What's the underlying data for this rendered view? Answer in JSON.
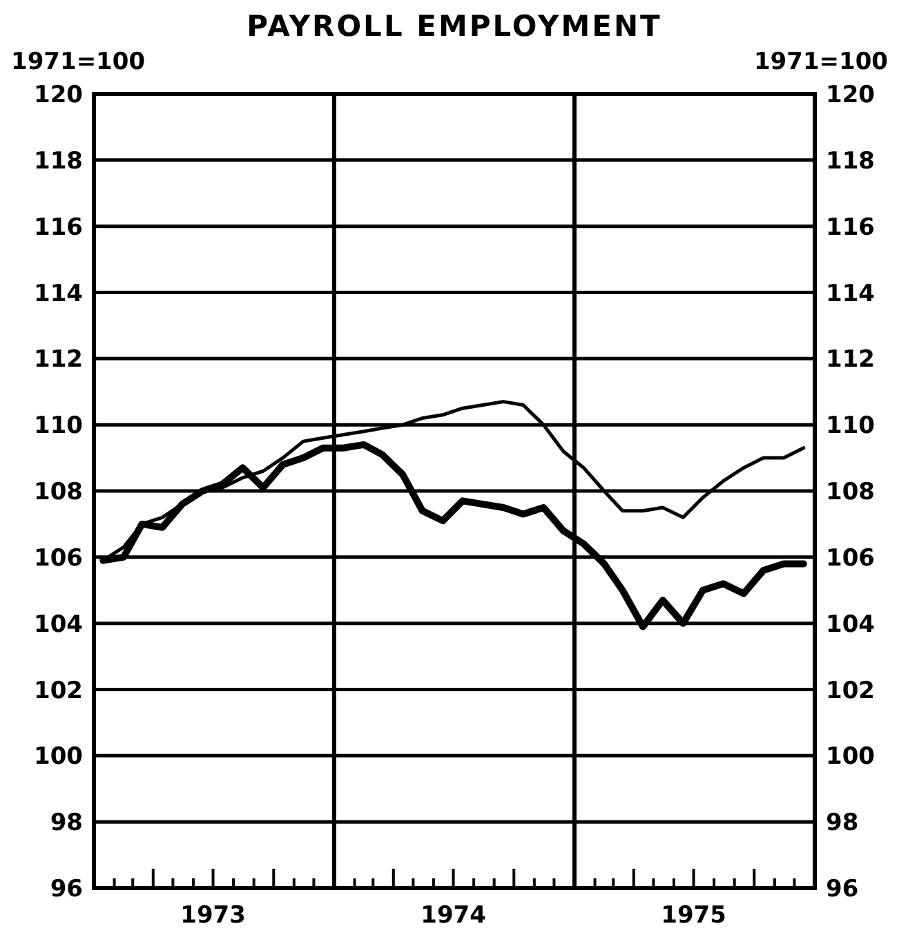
{
  "chart_data": {
    "type": "line",
    "title": "PAYROLL EMPLOYMENT",
    "ylabel": "1971=100",
    "y2label": "1971=100",
    "x": [
      "1973-01-15",
      "1973-02-15",
      "1973-03-15",
      "1973-04-15",
      "1973-05-15",
      "1973-06-15",
      "1973-07-15",
      "1973-08-15",
      "1973-09-15",
      "1973-10-15",
      "1973-11-15",
      "1973-12-15",
      "1974-01-15",
      "1974-02-15",
      "1974-03-15",
      "1974-04-15",
      "1974-05-15",
      "1974-06-15",
      "1974-07-15",
      "1974-08-15",
      "1974-09-15",
      "1974-10-15",
      "1974-11-15",
      "1974-12-15",
      "1975-01-15",
      "1975-02-15",
      "1975-03-15",
      "1975-04-15",
      "1975-05-15",
      "1975-06-15",
      "1975-07-15",
      "1975-08-15",
      "1975-09-15",
      "1975-10-15",
      "1975-11-15",
      "1975-12-15"
    ],
    "series": [
      {
        "color": "#000000",
        "values": [
          105.9,
          106.3,
          107.0,
          107.2,
          107.6,
          108.0,
          108.1,
          108.4,
          108.6,
          109.0,
          109.5,
          109.6,
          109.7,
          109.8,
          109.9,
          110.0,
          110.2,
          110.3,
          110.5,
          110.6,
          110.7,
          110.6,
          110.0,
          109.2,
          108.7,
          108.0,
          107.4,
          107.4,
          107.5,
          107.2,
          107.8,
          108.3,
          108.7,
          109.0,
          109.0,
          109.3
        ]
      },
      {
        "color": "#000000",
        "values": [
          105.9,
          106.0,
          107.0,
          106.9,
          107.6,
          108.0,
          108.2,
          108.7,
          108.1,
          108.8,
          109.0,
          109.3,
          109.3,
          109.4,
          109.1,
          108.5,
          107.4,
          107.1,
          107.7,
          107.6,
          107.5,
          107.3,
          107.5,
          106.8,
          106.4,
          105.8,
          105.0,
          103.9,
          104.7,
          104.0,
          105.0,
          105.2,
          104.9,
          105.6,
          105.8,
          105.8
        ]
      }
    ],
    "xlim": [
      "1973-01",
      "1976-01"
    ],
    "xticks": [
      {
        "value": "1973-02",
        "label": null
      },
      {
        "value": "1973-03",
        "label": null
      },
      {
        "value": "1973-04",
        "label": null
      },
      {
        "value": "1973-05",
        "label": null
      },
      {
        "value": "1973-06",
        "label": null
      },
      {
        "value": "1973-07",
        "label": "1973"
      },
      {
        "value": "1973-08",
        "label": null
      },
      {
        "value": "1973-09",
        "label": null
      },
      {
        "value": "1973-10",
        "label": null
      },
      {
        "value": "1973-11",
        "label": null
      },
      {
        "value": "1973-12",
        "label": null
      },
      {
        "value": "1974-01",
        "label": null
      },
      {
        "value": "1974-02",
        "label": null
      },
      {
        "value": "1974-03",
        "label": null
      },
      {
        "value": "1974-04",
        "label": null
      },
      {
        "value": "1974-05",
        "label": null
      },
      {
        "value": "1974-06",
        "label": null
      },
      {
        "value": "1974-07",
        "label": "1974"
      },
      {
        "value": "1974-08",
        "label": null
      },
      {
        "value": "1974-09",
        "label": null
      },
      {
        "value": "1974-10",
        "label": null
      },
      {
        "value": "1974-11",
        "label": null
      },
      {
        "value": "1974-12",
        "label": null
      },
      {
        "value": "1975-01",
        "label": null
      },
      {
        "value": "1975-02",
        "label": null
      },
      {
        "value": "1975-03",
        "label": null
      },
      {
        "value": "1975-04",
        "label": null
      },
      {
        "value": "1975-05",
        "label": null
      },
      {
        "value": "1975-06",
        "label": null
      },
      {
        "value": "1975-07",
        "label": "1975"
      },
      {
        "value": "1975-08",
        "label": null
      },
      {
        "value": "1975-09",
        "label": null
      },
      {
        "value": "1975-10",
        "label": null
      },
      {
        "value": "1975-11",
        "label": null
      },
      {
        "value": "1975-12",
        "label": null
      }
    ],
    "ylim": [
      96,
      120
    ],
    "yticks": [
      96,
      98,
      100,
      102,
      104,
      106,
      108,
      110,
      112,
      114,
      116,
      118,
      120
    ],
    "y2lim": [
      96,
      120
    ],
    "y2ticks": [
      96,
      98,
      100,
      102,
      104,
      106,
      108,
      110,
      112,
      114,
      116,
      118,
      120
    ],
    "grid": "y",
    "marker": "none",
    "line_style": "solid",
    "ref_lines": [
      {
        "axis": "x",
        "value": "1974-01"
      },
      {
        "axis": "x",
        "value": "1975-01"
      }
    ]
  }
}
